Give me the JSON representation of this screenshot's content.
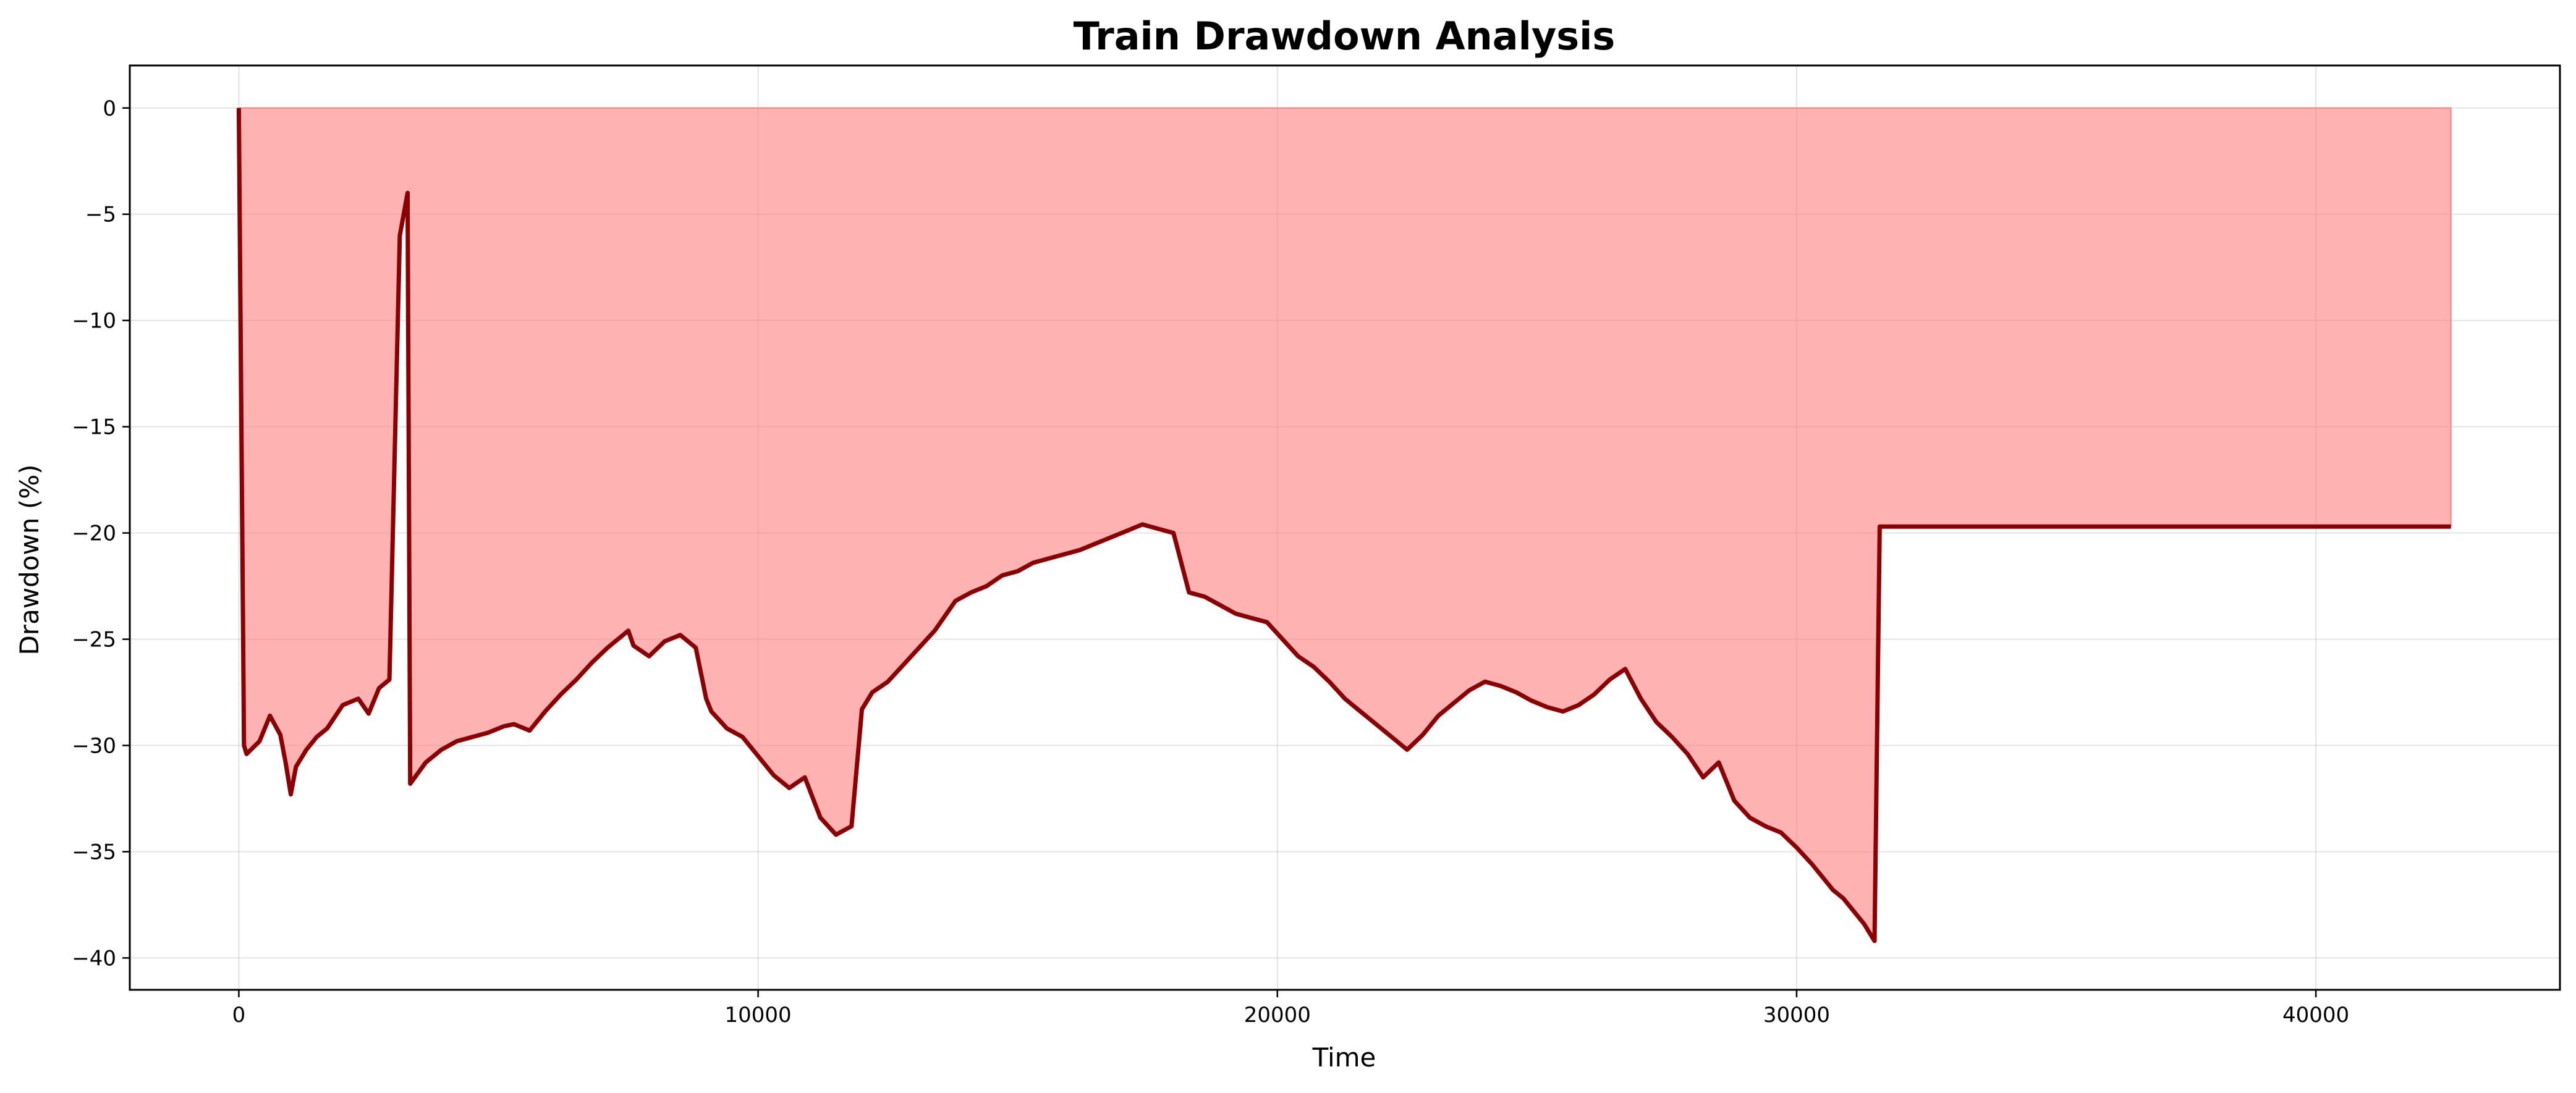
{
  "chart_data": {
    "type": "area",
    "title": "Train Drawdown Analysis",
    "xlabel": "Time",
    "ylabel": "Drawdown (%)",
    "xlim": [
      -2100,
      44700
    ],
    "ylim": [
      -41.5,
      2
    ],
    "xticks": [
      0,
      10000,
      20000,
      30000,
      40000
    ],
    "xtick_labels": [
      "0",
      "10000",
      "20000",
      "30000",
      "40000"
    ],
    "yticks": [
      0,
      -5,
      -10,
      -15,
      -20,
      -25,
      -30,
      -35,
      -40
    ],
    "ytick_labels": [
      "0",
      "−5",
      "−10",
      "−15",
      "−20",
      "−25",
      "−30",
      "−35",
      "−40"
    ],
    "grid": true,
    "legend": "none",
    "colors": {
      "line": "#8b0000",
      "fill": "#ff7f7f"
    },
    "series": [
      {
        "x": [
          0,
          100,
          150,
          400,
          600,
          800,
          900,
          1000,
          1100,
          1300,
          1500,
          1700,
          2000,
          2300,
          2500,
          2700,
          2900,
          3100,
          3250,
          3300,
          3600,
          3900,
          4200,
          4500,
          4800,
          5100,
          5300,
          5600,
          5900,
          6200,
          6500,
          6800,
          7100,
          7400,
          7500,
          7600,
          7900,
          8200,
          8500,
          8800,
          9000,
          9100,
          9400,
          9700,
          10000,
          10300,
          10600,
          10900,
          11200,
          11500,
          11800,
          12000,
          12200,
          12500,
          12800,
          13100,
          13400,
          13600,
          13800,
          14100,
          14400,
          14700,
          15000,
          15300,
          15600,
          15900,
          16200,
          16500,
          16800,
          17100,
          17400,
          17700,
          18000,
          18300,
          18600,
          18900,
          19200,
          19500,
          19800,
          20100,
          20400,
          20700,
          21000,
          21300,
          21600,
          21900,
          22200,
          22500,
          22800,
          23100,
          23400,
          23700,
          24000,
          24300,
          24600,
          24900,
          25200,
          25500,
          25800,
          26100,
          26400,
          26700,
          27000,
          27300,
          27600,
          27900,
          28200,
          28500,
          28800,
          29100,
          29400,
          29700,
          30000,
          30300,
          30500,
          30700,
          30900,
          31100,
          31300,
          31500,
          31600,
          32000,
          42600
        ],
        "y": [
          0,
          -30,
          -30.4,
          -29.8,
          -28.6,
          -29.5,
          -30.8,
          -32.3,
          -31.0,
          -30.2,
          -29.6,
          -29.2,
          -28.1,
          -27.8,
          -28.5,
          -27.3,
          -26.9,
          -6.0,
          -4.0,
          -31.8,
          -30.8,
          -30.2,
          -29.8,
          -29.6,
          -29.4,
          -29.1,
          -29.0,
          -29.3,
          -28.4,
          -27.6,
          -26.9,
          -26.1,
          -25.4,
          -24.8,
          -24.6,
          -25.3,
          -25.8,
          -25.1,
          -24.8,
          -25.4,
          -27.8,
          -28.4,
          -29.2,
          -29.6,
          -30.5,
          -31.4,
          -32.0,
          -31.5,
          -33.4,
          -34.2,
          -33.8,
          -28.3,
          -27.5,
          -27.0,
          -26.2,
          -25.4,
          -24.6,
          -23.9,
          -23.2,
          -22.8,
          -22.5,
          -22.0,
          -21.8,
          -21.4,
          -21.2,
          -21.0,
          -20.8,
          -20.5,
          -20.2,
          -19.9,
          -19.6,
          -19.8,
          -20.0,
          -22.8,
          -23.0,
          -23.4,
          -23.8,
          -24.0,
          -24.2,
          -25.0,
          -25.8,
          -26.3,
          -27.0,
          -27.8,
          -28.4,
          -29.0,
          -29.6,
          -30.2,
          -29.5,
          -28.6,
          -28.0,
          -27.4,
          -27.0,
          -27.2,
          -27.5,
          -27.9,
          -28.2,
          -28.4,
          -28.1,
          -27.6,
          -26.9,
          -26.4,
          -27.8,
          -28.9,
          -29.6,
          -30.4,
          -31.5,
          -30.8,
          -32.6,
          -33.4,
          -33.8,
          -34.1,
          -34.8,
          -35.6,
          -36.2,
          -36.8,
          -37.2,
          -37.8,
          -38.4,
          -39.2,
          -19.7,
          -19.7,
          -19.7
        ]
      }
    ]
  }
}
